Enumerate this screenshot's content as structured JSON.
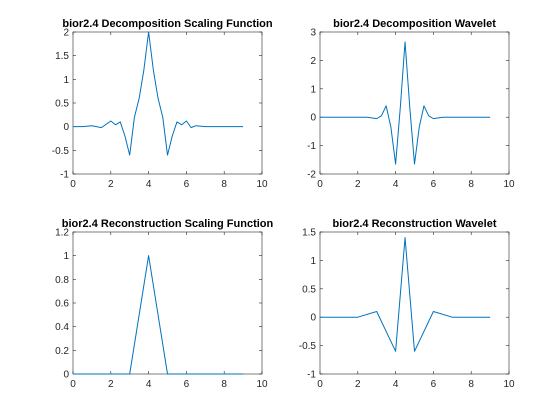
{
  "chart_data": [
    {
      "type": "line",
      "title": "bior2.4 Decomposition  Scaling Function",
      "xlim": [
        0,
        10
      ],
      "ylim": [
        -1,
        2
      ],
      "xticks": [
        0,
        2,
        4,
        6,
        8,
        10
      ],
      "yticks": [
        -1,
        -0.5,
        0,
        0.5,
        1,
        1.5,
        2
      ],
      "xticklabels": [
        "0",
        "2",
        "4",
        "6",
        "8",
        "10"
      ],
      "yticklabels": [
        "-1",
        "-0.5",
        "0",
        "0.5",
        "1",
        "1.5",
        "2"
      ],
      "color": "#0072BD",
      "x": [
        0,
        0.5,
        1,
        1.5,
        2,
        2.25,
        2.5,
        2.75,
        3,
        3.25,
        3.5,
        3.75,
        4,
        4.25,
        4.5,
        4.75,
        5,
        5.25,
        5.5,
        5.75,
        6,
        6.25,
        6.5,
        7,
        8,
        9
      ],
      "y": [
        0,
        0,
        0.02,
        -0.02,
        0.12,
        0.04,
        0.1,
        -0.2,
        -0.6,
        0.2,
        0.6,
        1.2,
        2.0,
        1.2,
        0.6,
        0.2,
        -0.6,
        -0.2,
        0.1,
        0.04,
        0.12,
        -0.02,
        0.02,
        0,
        0,
        0
      ]
    },
    {
      "type": "line",
      "title": "bior2.4 Decomposition   Wavelet",
      "xlim": [
        0,
        10
      ],
      "ylim": [
        -2,
        3
      ],
      "xticks": [
        0,
        2,
        4,
        6,
        8,
        10
      ],
      "yticks": [
        -2,
        -1,
        0,
        1,
        2,
        3
      ],
      "xticklabels": [
        "0",
        "2",
        "4",
        "6",
        "8",
        "10"
      ],
      "yticklabels": [
        "-2",
        "-1",
        "0",
        "1",
        "2",
        "3"
      ],
      "color": "#0072BD",
      "x": [
        0,
        2.5,
        3,
        3.25,
        3.5,
        3.75,
        4,
        4.25,
        4.5,
        4.75,
        5,
        5.25,
        5.5,
        5.75,
        6,
        6.5,
        9
      ],
      "y": [
        0,
        0,
        -0.05,
        0.05,
        0.4,
        -0.35,
        -1.65,
        0.35,
        2.65,
        0.35,
        -1.65,
        -0.35,
        0.4,
        0.05,
        -0.05,
        0,
        0
      ]
    },
    {
      "type": "line",
      "title": "bior2.4 Reconstruction  Scaling Function",
      "xlim": [
        0,
        10
      ],
      "ylim": [
        0,
        1.2
      ],
      "xticks": [
        0,
        2,
        4,
        6,
        8,
        10
      ],
      "yticks": [
        0,
        0.2,
        0.4,
        0.6,
        0.8,
        1,
        1.2
      ],
      "xticklabels": [
        "0",
        "2",
        "4",
        "6",
        "8",
        "10"
      ],
      "yticklabels": [
        "0",
        "0.2",
        "0.4",
        "0.6",
        "0.8",
        "1",
        "1.2"
      ],
      "color": "#0072BD",
      "x": [
        0,
        3,
        4,
        5,
        9
      ],
      "y": [
        0,
        0,
        1,
        0,
        0
      ]
    },
    {
      "type": "line",
      "title": "bior2.4 Reconstruction  Wavelet",
      "xlim": [
        0,
        10
      ],
      "ylim": [
        -1,
        1.5
      ],
      "xticks": [
        0,
        2,
        4,
        6,
        8,
        10
      ],
      "yticks": [
        -1,
        -0.5,
        0,
        0.5,
        1,
        1.5
      ],
      "xticklabels": [
        "0",
        "2",
        "4",
        "6",
        "8",
        "10"
      ],
      "yticklabels": [
        "-1",
        "-0.5",
        "0",
        "0.5",
        "1",
        "1.5"
      ],
      "color": "#0072BD",
      "x": [
        0,
        2,
        3,
        4,
        4.5,
        5,
        6,
        7,
        9
      ],
      "y": [
        0,
        0,
        0.1,
        -0.6,
        1.4,
        -0.6,
        0.1,
        0,
        0
      ]
    }
  ]
}
